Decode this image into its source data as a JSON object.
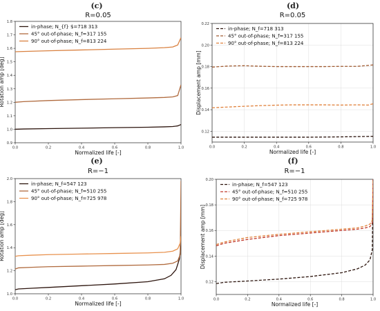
{
  "chart_data": [
    {
      "letter": "(c)",
      "type": "line",
      "title": "R=0.05",
      "xlabel": "Normalized life [-]",
      "ylabel": "Rotation amp [deg]",
      "xlim": [
        0,
        1
      ],
      "ylim": [
        0.9,
        1.8
      ],
      "xticks": [
        "0.0",
        "0.2",
        "0.4",
        "0.6",
        "0.8",
        "1.0"
      ],
      "yticks": [
        "0.9",
        "1.0",
        "1.1",
        "1.2",
        "1.3",
        "1.4",
        "1.5",
        "1.6",
        "1.7",
        "1.8"
      ],
      "grid": false,
      "legend_position": "upper-left",
      "series": [
        {
          "name": "in-phase; N_{f} $=718 313",
          "color": "#2b130c",
          "dash": "solid",
          "x": [
            0,
            0.05,
            0.2,
            0.4,
            0.6,
            0.8,
            0.9,
            0.95,
            0.98,
            1.0
          ],
          "y": [
            1.0,
            1.002,
            1.005,
            1.008,
            1.012,
            1.015,
            1.018,
            1.02,
            1.025,
            1.035
          ]
        },
        {
          "name": "45° out-of-phase; N_f=317 155",
          "color": "#b06a3d",
          "dash": "solid",
          "x": [
            0,
            0.05,
            0.2,
            0.4,
            0.6,
            0.8,
            0.9,
            0.95,
            0.98,
            1.0
          ],
          "y": [
            1.2,
            1.205,
            1.213,
            1.22,
            1.226,
            1.232,
            1.236,
            1.24,
            1.25,
            1.33
          ]
        },
        {
          "name": "90° out-of-phase; N_f=813 224",
          "color": "#d9803f",
          "dash": "solid",
          "x": [
            0,
            0.05,
            0.2,
            0.4,
            0.6,
            0.8,
            0.9,
            0.95,
            0.98,
            1.0
          ],
          "y": [
            1.575,
            1.577,
            1.582,
            1.588,
            1.594,
            1.6,
            1.605,
            1.61,
            1.625,
            1.68
          ]
        }
      ]
    },
    {
      "letter": "(d)",
      "type": "line",
      "title": "R=0.05",
      "xlabel": "Normalized life [-]",
      "ylabel": "Displacement amp [mm]",
      "xlim": [
        0,
        1
      ],
      "ylim": [
        0.11,
        0.22
      ],
      "xticks": [
        "0.0",
        "0.2",
        "0.4",
        "0.6",
        "0.8",
        "1.0"
      ],
      "yticks": [
        "0.12",
        "0.14",
        "0.16",
        "0.18",
        "0.20",
        "0.22"
      ],
      "grid": true,
      "legend_position": "upper-left",
      "series": [
        {
          "name": "in-phase; N_f=718 313",
          "color": "#2b130c",
          "dash": "dashed",
          "x": [
            0,
            0.2,
            0.4,
            0.6,
            0.8,
            1.0
          ],
          "y": [
            0.1145,
            0.1145,
            0.1145,
            0.1145,
            0.1148,
            0.1153
          ]
        },
        {
          "name": "45° out-of-phase; N_f=317 155",
          "color": "#a05a30",
          "dash": "dashed",
          "x": [
            0,
            0.1,
            0.2,
            0.3,
            0.4,
            0.5,
            0.6,
            0.7,
            0.8,
            0.9,
            1.0
          ],
          "y": [
            0.1795,
            0.1805,
            0.1808,
            0.1803,
            0.18,
            0.18,
            0.18,
            0.18,
            0.1802,
            0.1802,
            0.1815
          ]
        },
        {
          "name": "90° out-of-phase; N_f=813 224",
          "color": "#e0803a",
          "dash": "dashed",
          "x": [
            0,
            0.1,
            0.2,
            0.3,
            0.4,
            0.5,
            0.6,
            0.7,
            0.8,
            0.9,
            0.97,
            1.0
          ],
          "y": [
            0.1418,
            0.1425,
            0.1432,
            0.1438,
            0.1442,
            0.1445,
            0.1445,
            0.1445,
            0.1443,
            0.1445,
            0.1443,
            0.1455
          ]
        }
      ]
    },
    {
      "letter": "(e)",
      "type": "line",
      "title": "R=−1",
      "xlabel": "Normalized life [-]",
      "ylabel": "Rotation amp [deg]",
      "xlim": [
        0,
        1
      ],
      "ylim": [
        1.0,
        2.0
      ],
      "xticks": [
        "0.0",
        "0.2",
        "0.4",
        "0.6",
        "0.8",
        "1.0"
      ],
      "yticks": [
        "1.0",
        "1.2",
        "1.4",
        "1.6",
        "1.8",
        "2.0"
      ],
      "grid": false,
      "legend_position": "upper-left",
      "series": [
        {
          "name": "in-phase; N_f=547 123",
          "color": "#2b130c",
          "dash": "solid",
          "x": [
            0,
            0.02,
            0.1,
            0.2,
            0.4,
            0.6,
            0.8,
            0.9,
            0.94,
            0.97,
            0.99,
            1.0
          ],
          "y": [
            1.035,
            1.042,
            1.048,
            1.055,
            1.07,
            1.085,
            1.105,
            1.13,
            1.16,
            1.21,
            1.3,
            1.42
          ]
        },
        {
          "name": "45° out-of-phase; N_f=510 255",
          "color": "#b06a3d",
          "dash": "solid",
          "x": [
            0,
            0.02,
            0.1,
            0.2,
            0.4,
            0.6,
            0.8,
            0.9,
            0.95,
            0.98,
            0.995,
            1.0
          ],
          "y": [
            1.215,
            1.225,
            1.23,
            1.235,
            1.24,
            1.245,
            1.25,
            1.255,
            1.265,
            1.285,
            1.34,
            1.98
          ]
        },
        {
          "name": "90° out-of-phase; N_f=725 978",
          "color": "#e8914d",
          "dash": "solid",
          "x": [
            0,
            0.02,
            0.1,
            0.2,
            0.4,
            0.6,
            0.8,
            0.9,
            0.95,
            0.98,
            0.995,
            1.0
          ],
          "y": [
            1.325,
            1.33,
            1.335,
            1.34,
            1.345,
            1.35,
            1.355,
            1.36,
            1.37,
            1.39,
            1.44,
            1.5
          ]
        }
      ]
    },
    {
      "letter": "(f)",
      "type": "line",
      "title": "R=−1",
      "xlabel": "Normalized life [-]",
      "ylabel": "Displacement amp [mm]",
      "xlim": [
        0,
        1
      ],
      "ylim": [
        0.11,
        0.2
      ],
      "xticks": [
        "0.0",
        "0.2",
        "0.4",
        "0.6",
        "0.8",
        "1.0"
      ],
      "yticks": [
        "0.12",
        "0.14",
        "0.16",
        "0.18",
        "0.20"
      ],
      "grid": true,
      "legend_position": "upper-left",
      "series": [
        {
          "name": "in-phase; N_f=547 123",
          "color": "#2b130c",
          "dash": "dashed",
          "x": [
            0,
            0.05,
            0.2,
            0.4,
            0.6,
            0.8,
            0.9,
            0.95,
            0.98,
            0.995,
            1.0
          ],
          "y": [
            0.1185,
            0.1195,
            0.1205,
            0.122,
            0.124,
            0.127,
            0.13,
            0.133,
            0.137,
            0.145,
            0.2
          ]
        },
        {
          "name": "45° out-of-phase; N_f=510 255",
          "color": "#c0392b",
          "dash": "dashed",
          "x": [
            0,
            0.05,
            0.2,
            0.4,
            0.6,
            0.8,
            0.9,
            0.95,
            0.98,
            0.995,
            1.0
          ],
          "y": [
            0.148,
            0.15,
            0.153,
            0.156,
            0.158,
            0.16,
            0.161,
            0.162,
            0.163,
            0.166,
            0.2
          ]
        },
        {
          "name": "90° out-of-phase; N_f=725 978",
          "color": "#e0803a",
          "dash": "dashed",
          "x": [
            0,
            0.05,
            0.2,
            0.4,
            0.6,
            0.8,
            0.9,
            0.95,
            0.98,
            0.995,
            1.0
          ],
          "y": [
            0.149,
            0.151,
            0.1545,
            0.157,
            0.159,
            0.161,
            0.162,
            0.1635,
            0.165,
            0.168,
            0.2
          ]
        }
      ]
    }
  ]
}
